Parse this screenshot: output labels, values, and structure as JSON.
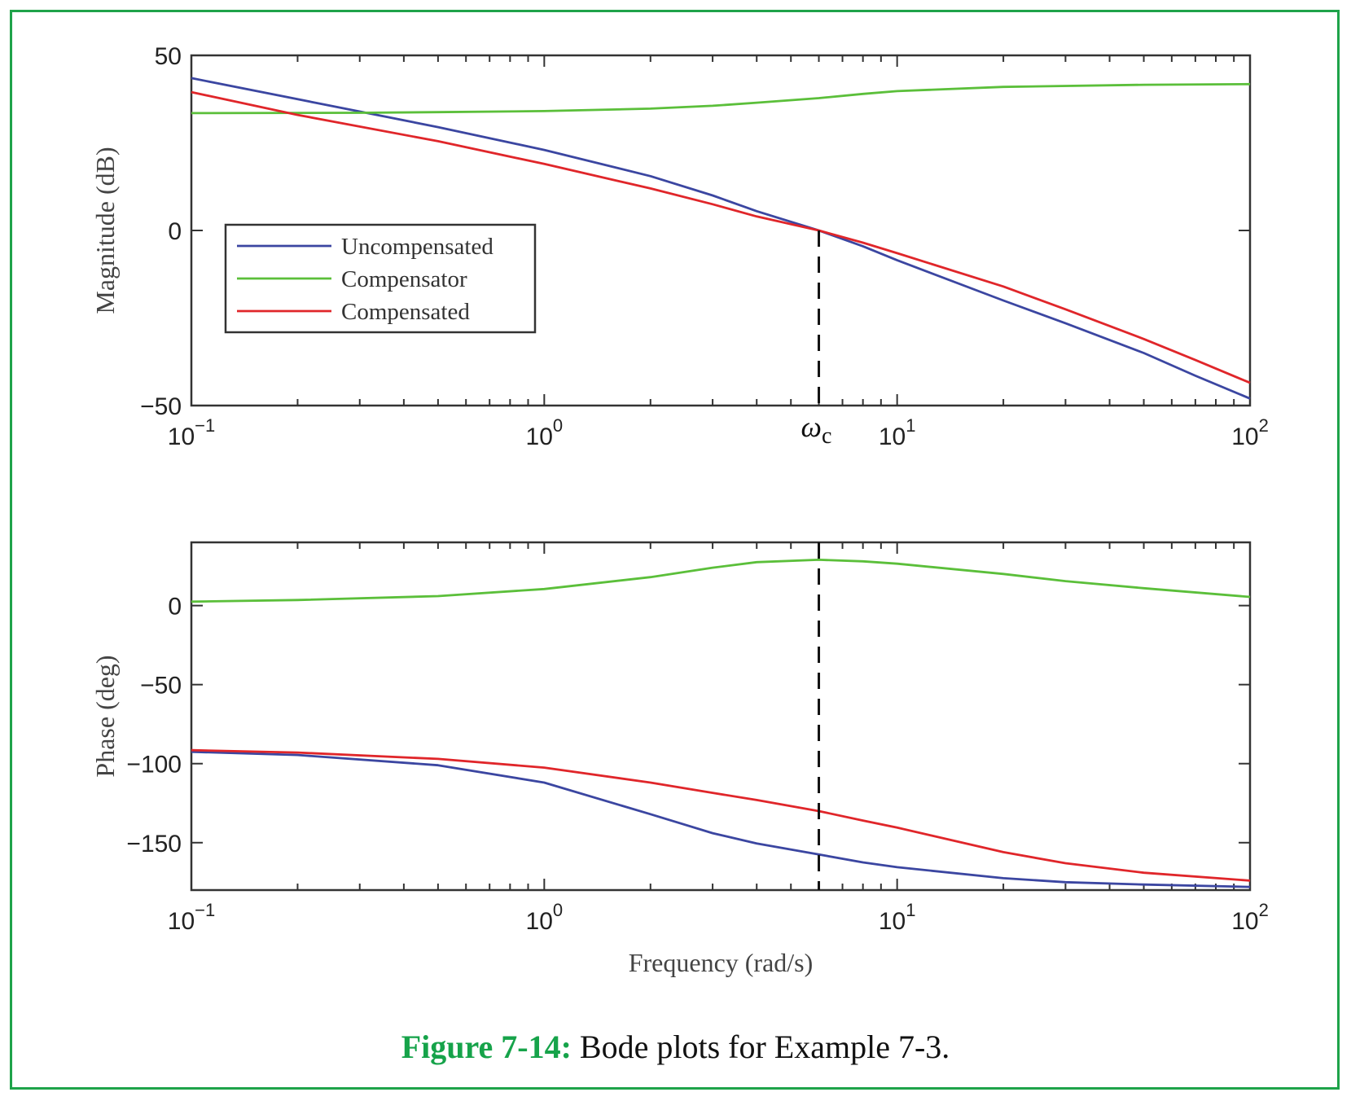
{
  "caption": {
    "label": "Figure 7-14:",
    "text": " Bode plots for Example 7-3."
  },
  "colors": {
    "frame": "#1fa34a",
    "uncompensated": "#3b46a1",
    "compensator": "#5bbf3a",
    "compensated": "#e0262a",
    "axis": "#333333"
  },
  "chart_data": [
    {
      "type": "line",
      "xscale": "log",
      "xlim": [
        0.1,
        100
      ],
      "ylim": [
        -50,
        50
      ],
      "ylabel": "Magnitude (dB)",
      "xlabel": "",
      "yticks": [
        {
          "v": -50,
          "label": "−50"
        },
        {
          "v": 0,
          "label": "0"
        },
        {
          "v": 50,
          "label": "50"
        }
      ],
      "xticks": [
        {
          "v": 0.1,
          "base": "10",
          "exp": "−1"
        },
        {
          "v": 1,
          "base": "10",
          "exp": "0"
        },
        {
          "v": 10,
          "base": "10",
          "exp": "1"
        },
        {
          "v": 100,
          "base": "10",
          "exp": "2"
        }
      ],
      "legend": {
        "placement": "center-left",
        "entries": [
          "Uncompensated",
          "Compensator",
          "Compensated"
        ]
      },
      "annotation": {
        "text": "ω",
        "sub": "c",
        "x": 6
      },
      "series": [
        {
          "name": "Uncompensated",
          "color": "#3b46a1",
          "points": [
            [
              0.1,
              43.5
            ],
            [
              0.2,
              37.5
            ],
            [
              0.5,
              29.5
            ],
            [
              1,
              23.0
            ],
            [
              2,
              15.5
            ],
            [
              3,
              10.0
            ],
            [
              4,
              5.5
            ],
            [
              6,
              0.0
            ],
            [
              8,
              -4.5
            ],
            [
              10,
              -8.5
            ],
            [
              20,
              -20.0
            ],
            [
              30,
              -26.5
            ],
            [
              50,
              -35.0
            ],
            [
              70,
              -41.5
            ],
            [
              100,
              -48.0
            ]
          ]
        },
        {
          "name": "Compensator",
          "color": "#5bbf3a",
          "points": [
            [
              0.1,
              33.5
            ],
            [
              0.3,
              33.6
            ],
            [
              0.5,
              33.8
            ],
            [
              1,
              34.1
            ],
            [
              2,
              34.8
            ],
            [
              3,
              35.6
            ],
            [
              4,
              36.5
            ],
            [
              6,
              37.8
            ],
            [
              8,
              39.0
            ],
            [
              10,
              39.8
            ],
            [
              20,
              41.0
            ],
            [
              50,
              41.6
            ],
            [
              100,
              41.8
            ]
          ]
        },
        {
          "name": "Compensated",
          "color": "#e0262a",
          "points": [
            [
              0.1,
              39.5
            ],
            [
              0.2,
              33.0
            ],
            [
              0.5,
              25.5
            ],
            [
              1,
              19.0
            ],
            [
              2,
              12.0
            ],
            [
              3,
              7.5
            ],
            [
              4,
              4.0
            ],
            [
              6,
              0.0
            ],
            [
              8,
              -3.5
            ],
            [
              10,
              -6.5
            ],
            [
              20,
              -16.0
            ],
            [
              30,
              -22.5
            ],
            [
              50,
              -31.0
            ],
            [
              70,
              -37.0
            ],
            [
              100,
              -43.5
            ]
          ]
        }
      ]
    },
    {
      "type": "line",
      "xscale": "log",
      "xlim": [
        0.1,
        100
      ],
      "ylim": [
        -180,
        40
      ],
      "ylabel": "Phase (deg)",
      "xlabel": "Frequency (rad/s)",
      "yticks": [
        {
          "v": -150,
          "label": "−150"
        },
        {
          "v": -100,
          "label": "−100"
        },
        {
          "v": -50,
          "label": "−50"
        },
        {
          "v": 0,
          "label": "0"
        }
      ],
      "xticks": [
        {
          "v": 0.1,
          "base": "10",
          "exp": "−1"
        },
        {
          "v": 1,
          "base": "10",
          "exp": "0"
        },
        {
          "v": 10,
          "base": "10",
          "exp": "1"
        },
        {
          "v": 100,
          "base": "10",
          "exp": "2"
        }
      ],
      "annotation": {
        "x": 6
      },
      "series": [
        {
          "name": "Uncompensated",
          "color": "#3b46a1",
          "points": [
            [
              0.1,
              -92.5
            ],
            [
              0.2,
              -94.5
            ],
            [
              0.5,
              -101.0
            ],
            [
              1,
              -112.0
            ],
            [
              2,
              -132.0
            ],
            [
              3,
              -144.0
            ],
            [
              4,
              -150.5
            ],
            [
              6,
              -157.5
            ],
            [
              8,
              -162.5
            ],
            [
              10,
              -165.5
            ],
            [
              20,
              -172.5
            ],
            [
              30,
              -175.0
            ],
            [
              50,
              -176.5
            ],
            [
              100,
              -178.0
            ]
          ]
        },
        {
          "name": "Compensator",
          "color": "#5bbf3a",
          "points": [
            [
              0.1,
              2.5
            ],
            [
              0.2,
              3.5
            ],
            [
              0.5,
              6.0
            ],
            [
              1,
              10.5
            ],
            [
              2,
              18.0
            ],
            [
              3,
              24.0
            ],
            [
              4,
              27.5
            ],
            [
              6,
              29.0
            ],
            [
              8,
              28.0
            ],
            [
              10,
              26.5
            ],
            [
              20,
              20.0
            ],
            [
              30,
              15.5
            ],
            [
              50,
              11.0
            ],
            [
              100,
              5.5
            ]
          ]
        },
        {
          "name": "Compensated",
          "color": "#e0262a",
          "points": [
            [
              0.1,
              -91.5
            ],
            [
              0.2,
              -93.0
            ],
            [
              0.5,
              -97.0
            ],
            [
              1,
              -102.5
            ],
            [
              2,
              -112.0
            ],
            [
              3,
              -118.5
            ],
            [
              4,
              -123.0
            ],
            [
              6,
              -130.0
            ],
            [
              8,
              -136.0
            ],
            [
              10,
              -140.5
            ],
            [
              20,
              -156.0
            ],
            [
              30,
              -163.0
            ],
            [
              50,
              -169.0
            ],
            [
              100,
              -174.0
            ]
          ]
        }
      ]
    }
  ]
}
